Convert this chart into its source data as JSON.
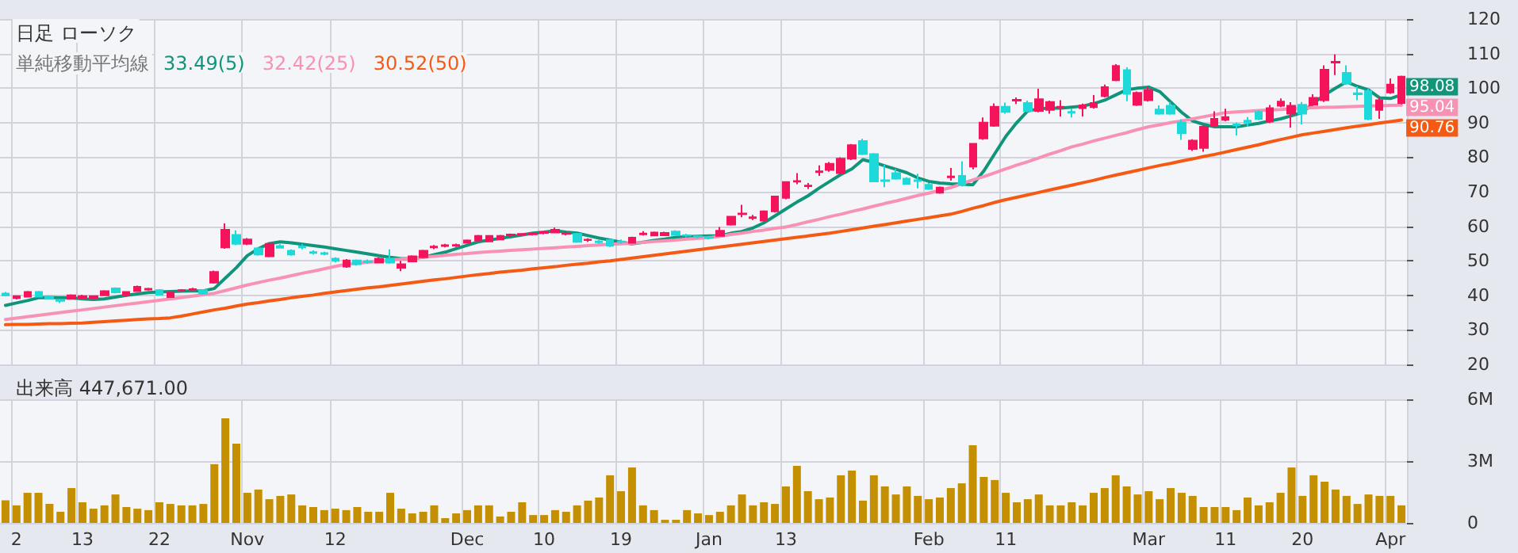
{
  "chart_data": [
    {
      "type": "candlestick",
      "title": "日足 ローソク",
      "annotations": [
        "単純移動平均線"
      ],
      "legend": "top left",
      "grid": true,
      "tick_labels": "y",
      "ylim": [
        20,
        120
      ],
      "yticks": [
        20,
        30,
        40,
        50,
        60,
        70,
        80,
        90,
        100,
        110,
        120
      ],
      "categories": [
        null,
        null,
        null,
        null,
        null,
        null,
        null,
        null,
        null,
        null,
        null,
        null,
        null,
        null,
        null,
        null,
        null,
        null,
        null,
        null,
        null,
        null,
        null,
        null,
        null,
        null,
        null,
        null,
        null,
        null,
        null,
        null,
        null,
        null,
        null,
        null,
        null,
        null,
        null,
        null,
        null,
        null,
        null,
        null,
        null,
        null,
        null,
        null,
        null,
        null,
        null,
        null,
        null,
        null,
        null,
        null,
        null,
        null,
        null,
        null,
        null,
        null,
        null,
        null,
        null,
        null,
        null,
        null,
        null,
        null,
        null,
        null,
        null,
        null,
        null,
        null,
        null,
        null,
        null,
        null,
        null,
        null,
        null,
        null,
        null,
        null,
        null,
        null,
        null,
        null,
        null,
        null,
        null,
        null,
        null,
        null,
        null,
        null,
        null,
        null,
        null,
        null,
        null,
        null,
        null,
        null,
        null,
        null,
        null,
        null,
        null,
        null,
        null,
        null,
        null,
        null,
        null,
        null,
        null,
        null,
        null,
        null,
        null,
        null,
        null,
        null,
        null,
        null
      ],
      "series": [
        {
          "type": "candlestick",
          "colors": [
            "#1dd9d9",
            "#f5135c",
            "#f5135c",
            "#1dd9d9",
            "#1dd9d9",
            "#1dd9d9",
            "#f5135c",
            "#f5135c",
            "#f5135c",
            "#f5135c",
            "#1dd9d9",
            "#f5135c",
            "#f5135c",
            "#f5135c",
            "#1dd9d9",
            "#f5135c",
            "#f5135c",
            "#f5135c",
            "#1dd9d9",
            "#f5135c",
            "#f5135c",
            "#1dd9d9",
            "#f5135c",
            "#1dd9d9",
            "#f5135c",
            "#1dd9d9",
            "#1dd9d9",
            "#1dd9d9",
            "#1dd9d9",
            "#1dd9d9",
            "#1dd9d9",
            "#f5135c",
            "#1dd9d9",
            "#1dd9d9",
            "#f5135c",
            "#1dd9d9",
            "#f5135c",
            "#f5135c",
            "#f5135c",
            "#f5135c",
            "#f5135c",
            "#f5135c",
            "#f5135c",
            "#f5135c",
            "#f5135c",
            "#f5135c",
            "#f5135c",
            "#f5135c",
            "#f5135c",
            "#f5135c",
            "#f5135c",
            "#f5135c",
            "#1dd9d9",
            "#f5135c",
            "#1dd9d9",
            "#1dd9d9",
            "#1dd9d9",
            "#f5135c",
            "#f5135c",
            "#f5135c",
            "#f5135c",
            "#1dd9d9",
            "#1dd9d9",
            "#1dd9d9",
            "#1dd9d9",
            "#f5135c",
            "#f5135c",
            "#f5135c",
            "#f5135c",
            "#f5135c",
            "#f5135c",
            "#f5135c",
            "#f5135c",
            "#f5135c",
            "#f5135c",
            "#f5135c",
            "#f5135c",
            "#f5135c",
            "#1dd9d9",
            "#1dd9d9",
            "#1dd9d9",
            "#1dd9d9",
            "#1dd9d9",
            "#1dd9d9",
            "#1dd9d9",
            "#f5135c",
            "#f5135c",
            "#1dd9d9",
            "#f5135c",
            "#f5135c",
            "#f5135c",
            "#1dd9d9",
            "#f5135c",
            "#1dd9d9",
            "#f5135c",
            "#f5135c",
            "#f5135c",
            "#1dd9d9",
            "#f5135c",
            "#f5135c",
            "#f5135c",
            "#f5135c",
            "#1dd9d9",
            "#f5135c",
            "#f5135c",
            "#1dd9d9",
            "#1dd9d9",
            "#1dd9d9",
            "#f5135c",
            "#f5135c",
            "#f5135c",
            "#f5135c",
            "#1dd9d9",
            "#1dd9d9",
            "#1dd9d9",
            "#f5135c",
            "#f5135c",
            "#f5135c",
            "#1dd9d9",
            "#f5135c",
            "#f5135c",
            "#f5135c",
            "#1dd9d9",
            "#1dd9d9",
            "#1dd9d9",
            "#f5135c",
            "#f5135c",
            "#f5135c"
          ],
          "ohlc": [
            [
              40.5,
              41,
              39.8,
              40
            ],
            [
              39.2,
              40,
              38.8,
              39.8
            ],
            [
              39.6,
              41.3,
              39.4,
              41
            ],
            [
              41,
              41.3,
              39.4,
              39.6
            ],
            [
              39.6,
              40,
              38.8,
              39
            ],
            [
              38.6,
              39,
              37.8,
              38.4
            ],
            [
              39,
              40.3,
              38.8,
              40
            ],
            [
              39.2,
              40.2,
              39,
              39.8
            ],
            [
              39.2,
              40,
              38.8,
              39.8
            ],
            [
              40,
              41.5,
              39.8,
              41.2
            ],
            [
              42,
              42.3,
              40.6,
              40.9
            ],
            [
              40,
              41.2,
              39.6,
              41
            ],
            [
              41.2,
              42.8,
              41,
              42.5
            ],
            [
              41.7,
              42.2,
              41.4,
              41.9
            ],
            [
              41.5,
              41.8,
              40,
              40.2
            ],
            [
              39.5,
              41,
              39.3,
              40.8
            ],
            [
              41.4,
              41.8,
              41,
              41.5
            ],
            [
              41.7,
              42.2,
              41.3,
              41.8
            ],
            [
              41.5,
              41.8,
              40.2,
              40.5
            ],
            [
              43.7,
              47.2,
              43.4,
              46.8
            ],
            [
              53.9,
              60.8,
              53.5,
              59
            ],
            [
              57.5,
              58.8,
              54.5,
              54.9
            ],
            [
              54.9,
              56.6,
              54.6,
              56.2
            ],
            [
              53.6,
              54,
              51.5,
              51.8
            ],
            [
              51.3,
              55.2,
              51,
              54.9
            ],
            [
              54.3,
              54.8,
              53.6,
              53.8
            ],
            [
              52.9,
              53.3,
              51.5,
              51.8
            ],
            [
              54.2,
              54.8,
              53.3,
              53.9
            ],
            [
              52.5,
              53,
              51.8,
              52.3
            ],
            [
              52.2,
              52.6,
              51.6,
              52
            ],
            [
              50.6,
              51,
              49.6,
              50
            ],
            [
              48.3,
              50.5,
              48,
              50.1
            ],
            [
              50.1,
              50.4,
              48.6,
              49
            ],
            [
              49.9,
              50.4,
              49.2,
              49.7
            ],
            [
              49.5,
              51,
              49.3,
              50.6
            ],
            [
              50.6,
              53.3,
              49.2,
              49.5
            ],
            [
              48,
              50,
              47,
              49
            ],
            [
              49.8,
              51.6,
              49.6,
              51.3
            ],
            [
              51,
              53.2,
              50.8,
              52.9
            ],
            [
              53.9,
              54.6,
              53.4,
              54.1
            ],
            [
              54.3,
              54.9,
              53.9,
              54.5
            ],
            [
              54.4,
              55,
              54,
              54.6
            ],
            [
              55.2,
              56.2,
              55,
              55.9
            ],
            [
              55.9,
              57.5,
              55.6,
              57.2
            ],
            [
              55.6,
              57.4,
              55.4,
              57.2
            ],
            [
              56.2,
              57.5,
              56,
              57.2
            ],
            [
              57.4,
              57.9,
              57,
              57.6
            ],
            [
              57.6,
              58,
              57.2,
              57.8
            ],
            [
              57.7,
              58.2,
              57.3,
              57.9
            ],
            [
              58.1,
              58.6,
              57.7,
              58.3
            ],
            [
              58.2,
              59.6,
              58,
              59
            ],
            [
              57.8,
              58.3,
              57.4,
              57.9
            ],
            [
              57.8,
              58.1,
              55.2,
              55.5
            ],
            [
              56,
              56.5,
              55.5,
              56.1
            ],
            [
              55.6,
              56,
              54.9,
              55.4
            ],
            [
              56,
              56.3,
              54,
              54.4
            ],
            [
              55.6,
              56.2,
              54.9,
              55.5
            ],
            [
              55.2,
              57,
              55,
              56.7
            ],
            [
              57.7,
              58.6,
              57.3,
              57.9
            ],
            [
              57.3,
              58.5,
              57.1,
              58.2
            ],
            [
              57.4,
              58.4,
              57.2,
              58.1
            ],
            [
              58.5,
              58.8,
              57.3,
              57.5
            ],
            [
              57.4,
              57.8,
              56.8,
              57.3
            ],
            [
              57.1,
              57.4,
              56.5,
              56.9
            ],
            [
              56.8,
              57.2,
              56.2,
              56.7
            ],
            [
              57.2,
              59.8,
              57,
              58.7
            ],
            [
              60.5,
              63,
              60.2,
              62.8
            ],
            [
              63.5,
              66.2,
              62.6,
              63.7
            ],
            [
              62.4,
              63.3,
              61.8,
              62.6
            ],
            [
              61.6,
              64.6,
              61.3,
              64.3
            ],
            [
              64.3,
              68.8,
              64,
              68.6
            ],
            [
              68.2,
              73,
              67.8,
              72.8
            ],
            [
              72.9,
              75.4,
              72.2,
              73.1
            ],
            [
              71.6,
              72.5,
              70.8,
              71.8
            ],
            [
              75.7,
              77.6,
              74.6,
              75.9
            ],
            [
              76.3,
              78.6,
              75.8,
              78.1
            ],
            [
              75.4,
              80,
              75,
              79.6
            ],
            [
              79.6,
              83.8,
              79.2,
              83.5
            ],
            [
              84.7,
              85.3,
              80.6,
              80.9
            ],
            [
              80.9,
              81.2,
              72.8,
              73
            ],
            [
              73.3,
              77.8,
              71.3,
              73.1
            ],
            [
              75.4,
              76.6,
              73.5,
              73.8
            ],
            [
              73.8,
              74.2,
              72,
              72.3
            ],
            [
              73.3,
              75.2,
              71,
              73.1
            ],
            [
              72,
              72.5,
              70.5,
              70.8
            ],
            [
              69.7,
              71.5,
              69.4,
              71.2
            ],
            [
              74.2,
              76.9,
              73.2,
              74.4
            ],
            [
              74.6,
              78.8,
              71.5,
              72
            ],
            [
              77.3,
              84.1,
              76.5,
              83.9
            ],
            [
              85.4,
              91.5,
              85,
              90
            ],
            [
              89.1,
              95.6,
              88.8,
              94.6
            ],
            [
              94.6,
              95.8,
              92.6,
              93.1
            ],
            [
              96.4,
              97.3,
              95.4,
              96.6
            ],
            [
              95.7,
              96.4,
              93,
              93.4
            ],
            [
              93.4,
              99.8,
              93,
              96.8
            ],
            [
              93.7,
              96.4,
              92.6,
              96
            ],
            [
              94.4,
              96.5,
              91.8,
              94.6
            ],
            [
              93.1,
              94,
              91.5,
              92.9
            ],
            [
              94.2,
              95.5,
              91.8,
              95
            ],
            [
              94.5,
              98,
              94.1,
              95.7
            ],
            [
              97.7,
              101,
              97.3,
              100.3
            ],
            [
              102.3,
              106.9,
              102,
              106.4
            ],
            [
              105.2,
              106,
              96.2,
              98.3
            ],
            [
              95.2,
              99,
              94.8,
              98.6
            ],
            [
              96.5,
              100.3,
              96.1,
              99.5
            ],
            [
              93.8,
              95,
              92.3,
              92.6
            ],
            [
              94.9,
              96,
              92.3,
              92.6
            ],
            [
              90,
              91,
              85,
              87
            ],
            [
              82.4,
              85.2,
              81.8,
              84.8
            ],
            [
              82.7,
              89.2,
              81.6,
              88.8
            ],
            [
              89.1,
              93.3,
              88.7,
              91.1
            ],
            [
              90.8,
              94,
              90.4,
              91.6
            ],
            [
              89.5,
              90,
              86.3,
              89.2
            ],
            [
              90.6,
              91.6,
              88.8,
              90
            ],
            [
              93.1,
              93.6,
              90.7,
              91.1
            ],
            [
              90.3,
              95.1,
              89.9,
              94.2
            ],
            [
              94.9,
              97,
              94.5,
              96.1
            ],
            [
              92.6,
              95.9,
              88.6,
              94.9
            ],
            [
              95.2,
              96,
              89.5,
              92.6
            ],
            [
              95.2,
              98.2,
              94.8,
              97.2
            ],
            [
              96.5,
              106.6,
              96,
              105.3
            ],
            [
              107.4,
              109.8,
              103.8,
              107.6
            ],
            [
              104.4,
              106.6,
              100.9,
              101.3
            ],
            [
              98.5,
              100.5,
              96.5,
              98.2
            ],
            [
              99.2,
              99.8,
              90.7,
              91.1
            ],
            [
              93.7,
              97.4,
              91.1,
              96.5
            ],
            [
              98.7,
              102.8,
              98.3,
              101
            ],
            [
              95.7,
              103.6,
              95.3,
              103.3
            ]
          ]
        },
        {
          "type": "line",
          "name": "33.49(5)",
          "color": "#11957a",
          "values": [
            37.1,
            37.8,
            38.5,
            39.3,
            39.4,
            39.3,
            39.3,
            39,
            38.8,
            39,
            39.5,
            40,
            40.4,
            40.8,
            41,
            41.1,
            41.2,
            41.3,
            41.3,
            42,
            45,
            48,
            51.5,
            53.5,
            55,
            55.5,
            55.2,
            54.8,
            54.4,
            54,
            53.5,
            53,
            52.5,
            52,
            51.5,
            51,
            50.6,
            50.7,
            51,
            51.8,
            52.5,
            53.5,
            54.5,
            55.5,
            56,
            56.5,
            57,
            57.5,
            58,
            58.3,
            58.7,
            58.3,
            58,
            57.3,
            56.6,
            56,
            55.4,
            54.9,
            55.4,
            55.9,
            56.3,
            56.8,
            57,
            57.1,
            57.2,
            57.2,
            58,
            58.5,
            59.5,
            61,
            63,
            65,
            67,
            68.8,
            71,
            73,
            75,
            76.6,
            79.3,
            78.5,
            77.5,
            76.5,
            75.5,
            74,
            73,
            72.5,
            72.3,
            72.2,
            72,
            76,
            81,
            86,
            90,
            93.4,
            94,
            94.2,
            94.2,
            94.5,
            94.8,
            95.5,
            96.5,
            98,
            99.5,
            100,
            100.3,
            99,
            96,
            93,
            90.5,
            89.5,
            88.8,
            88.8,
            88.8,
            89.3,
            89.8,
            90.5,
            91.1,
            92,
            93,
            95.7,
            98,
            100,
            101.8,
            100.5,
            99.5,
            97.2,
            97,
            98.08
          ],
          "value_labels": [
            null,
            null,
            null,
            null,
            null,
            null,
            null,
            null,
            null,
            null,
            null,
            null,
            null,
            null,
            null,
            null,
            null,
            null,
            null,
            null,
            null,
            null,
            null,
            null,
            null,
            null,
            null,
            null,
            null,
            null,
            null,
            null,
            null,
            null,
            null,
            null,
            null,
            null,
            null,
            null,
            null,
            null,
            null,
            null,
            null,
            null,
            null,
            null,
            null,
            null,
            null,
            null,
            null,
            null,
            null,
            null,
            null,
            null,
            null,
            null,
            null,
            null,
            null,
            null,
            null,
            null,
            null,
            null,
            null,
            null,
            null,
            null,
            null,
            null,
            null,
            null,
            null,
            null,
            null,
            null,
            null,
            null,
            null,
            null,
            null,
            null,
            null,
            null,
            null,
            null,
            null,
            null,
            null,
            null,
            null,
            null,
            null,
            null,
            null,
            null,
            null,
            null,
            null,
            null,
            null,
            null,
            null,
            null,
            null,
            null,
            null,
            null,
            null,
            null,
            null,
            null,
            null,
            null,
            null,
            null,
            null,
            null,
            null,
            null,
            null,
            null,
            null,
            "98.08"
          ]
        },
        {
          "type": "line",
          "name": "32.42(25)",
          "color": "#f792b4",
          "values": [
            33,
            33.4,
            33.8,
            34.2,
            34.6,
            35,
            35.4,
            35.8,
            36.2,
            36.6,
            37,
            37.4,
            37.8,
            38.2,
            38.6,
            39,
            39.4,
            39.8,
            40.2,
            40.6,
            41.4,
            42.2,
            43,
            43.7,
            44.4,
            45,
            45.7,
            46.4,
            47,
            47.7,
            48.4,
            49,
            49.3,
            49.6,
            49.9,
            50.2,
            50.5,
            50.8,
            51,
            51.3,
            51.6,
            51.9,
            52.1,
            52.4,
            52.6,
            52.8,
            53,
            53.2,
            53.4,
            53.6,
            53.8,
            54,
            54.2,
            54.4,
            54.6,
            54.8,
            54.9,
            55.1,
            55.3,
            55.6,
            55.8,
            56,
            56.3,
            56.5,
            56.7,
            57.1,
            57.6,
            58,
            58.5,
            58.9,
            59.4,
            59.8,
            60.5,
            61.3,
            62,
            62.8,
            63.5,
            64.3,
            65,
            65.8,
            66.6,
            67.3,
            68.1,
            68.9,
            69.6,
            70.4,
            71.2,
            72.3,
            73.4,
            74.4,
            75.5,
            76.6,
            77.7,
            78.7,
            79.8,
            80.9,
            81.9,
            83,
            83.8,
            84.7,
            85.5,
            86.3,
            87.1,
            88,
            88.8,
            89.4,
            90,
            90.5,
            91.1,
            91.7,
            92.3,
            92.9,
            93.1,
            93.3,
            93.5,
            93.7,
            93.8,
            94,
            94.2,
            94.3,
            94.4,
            94.5,
            94.6,
            94.7,
            94.8,
            94.9,
            95,
            95.04
          ],
          "value_labels": [
            null,
            null,
            null,
            null,
            null,
            null,
            null,
            null,
            null,
            null,
            null,
            null,
            null,
            null,
            null,
            null,
            null,
            null,
            null,
            null,
            null,
            null,
            null,
            null,
            null,
            null,
            null,
            null,
            null,
            null,
            null,
            null,
            null,
            null,
            null,
            null,
            null,
            null,
            null,
            null,
            null,
            null,
            null,
            null,
            null,
            null,
            null,
            null,
            null,
            null,
            null,
            null,
            null,
            null,
            null,
            null,
            null,
            null,
            null,
            null,
            null,
            null,
            null,
            null,
            null,
            null,
            null,
            null,
            null,
            null,
            null,
            null,
            null,
            null,
            null,
            null,
            null,
            null,
            null,
            null,
            null,
            null,
            null,
            null,
            null,
            null,
            null,
            null,
            null,
            null,
            null,
            null,
            null,
            null,
            null,
            null,
            null,
            null,
            null,
            null,
            null,
            null,
            null,
            null,
            null,
            null,
            null,
            null,
            null,
            null,
            null,
            null,
            null,
            null,
            null,
            null,
            null,
            null,
            null,
            null,
            null,
            null,
            null,
            null,
            null,
            null,
            null,
            "95.04"
          ]
        },
        {
          "type": "line",
          "name": "30.52(50)",
          "color": "#f55a14",
          "values": [
            31.5,
            31.6,
            31.6,
            31.7,
            31.8,
            31.8,
            31.9,
            32,
            32.2,
            32.4,
            32.6,
            32.8,
            33,
            33.2,
            33.3,
            33.5,
            34,
            34.6,
            35.2,
            35.8,
            36.3,
            36.9,
            37.5,
            37.9,
            38.4,
            38.8,
            39.3,
            39.7,
            40.1,
            40.6,
            41,
            41.4,
            41.8,
            42.2,
            42.5,
            42.9,
            43.3,
            43.7,
            44.1,
            44.5,
            44.8,
            45.2,
            45.6,
            46,
            46.3,
            46.7,
            47,
            47.3,
            47.7,
            48,
            48.3,
            48.7,
            49,
            49.3,
            49.7,
            50,
            50.4,
            50.8,
            51.2,
            51.6,
            52,
            52.4,
            52.8,
            53.2,
            53.6,
            54,
            54.4,
            54.8,
            55.2,
            55.6,
            56,
            56.4,
            56.8,
            57.2,
            57.6,
            58,
            58.5,
            59,
            59.5,
            60,
            60.5,
            61,
            61.5,
            62,
            62.5,
            63,
            63.5,
            64.3,
            65.2,
            66,
            66.9,
            67.7,
            68.4,
            69.1,
            69.8,
            70.5,
            71.2,
            71.9,
            72.6,
            73.3,
            74.1,
            74.8,
            75.5,
            76.2,
            76.9,
            77.6,
            78.2,
            78.9,
            79.5,
            80.2,
            80.8,
            81.5,
            82.2,
            82.9,
            83.6,
            84.4,
            85.1,
            85.8,
            86.5,
            87,
            87.5,
            88,
            88.5,
            89,
            89.4,
            89.9,
            90.3,
            90.76
          ],
          "value_labels": [
            null,
            null,
            null,
            null,
            null,
            null,
            null,
            null,
            null,
            null,
            null,
            null,
            null,
            null,
            null,
            null,
            null,
            null,
            null,
            null,
            null,
            null,
            null,
            null,
            null,
            null,
            null,
            null,
            null,
            null,
            null,
            null,
            null,
            null,
            null,
            null,
            null,
            null,
            null,
            null,
            null,
            null,
            null,
            null,
            null,
            null,
            null,
            null,
            null,
            null,
            null,
            null,
            null,
            null,
            null,
            null,
            null,
            null,
            null,
            null,
            null,
            null,
            null,
            null,
            null,
            null,
            null,
            null,
            null,
            null,
            null,
            null,
            null,
            null,
            null,
            null,
            null,
            null,
            null,
            null,
            null,
            null,
            null,
            null,
            null,
            null,
            null,
            null,
            null,
            null,
            null,
            null,
            null,
            null,
            null,
            null,
            null,
            null,
            null,
            null,
            null,
            null,
            null,
            null,
            null,
            null,
            null,
            null,
            null,
            null,
            null,
            null,
            null,
            null,
            null,
            null,
            null,
            null,
            null,
            null,
            null,
            null,
            null,
            null,
            null,
            null,
            null,
            "90.76"
          ]
        }
      ]
    },
    {
      "type": "bar",
      "title": "出来高 447,671.00",
      "grid": true,
      "color": "#c48f00",
      "ylim": [
        0,
        6
      ],
      "yticks": [
        {
          "value": 0,
          "label": "0"
        },
        {
          "value": 3,
          "label": "3M"
        },
        {
          "value": 6,
          "label": "6M"
        }
      ],
      "categories": [
        null,
        "2",
        null,
        null,
        null,
        null,
        null,
        "13",
        null,
        null,
        null,
        null,
        null,
        null,
        "22",
        null,
        null,
        null,
        null,
        null,
        null,
        null,
        "Nov",
        null,
        null,
        null,
        null,
        null,
        null,
        null,
        "12",
        null,
        null,
        null,
        null,
        null,
        null,
        null,
        null,
        null,
        null,
        null,
        "Dec",
        null,
        null,
        null,
        null,
        null,
        null,
        "10",
        null,
        null,
        null,
        null,
        null,
        null,
        "19",
        null,
        null,
        null,
        null,
        null,
        null,
        null,
        "Jan",
        null,
        null,
        null,
        null,
        null,
        null,
        "13",
        null,
        null,
        null,
        null,
        null,
        null,
        null,
        null,
        null,
        null,
        null,
        null,
        "Feb",
        null,
        null,
        null,
        null,
        null,
        null,
        "11",
        null,
        null,
        null,
        null,
        null,
        null,
        null,
        null,
        null,
        null,
        null,
        null,
        "Mar",
        null,
        null,
        null,
        null,
        null,
        null,
        "11",
        null,
        null,
        null,
        null,
        null,
        null,
        "20",
        null,
        null,
        null,
        null,
        null,
        null,
        null,
        "Apr",
        null
      ],
      "values": [
        1.1,
        0.85,
        1.46,
        1.46,
        0.92,
        0.54,
        1.69,
        1.0,
        0.69,
        0.85,
        1.38,
        0.77,
        0.69,
        0.62,
        1.0,
        0.92,
        0.85,
        0.85,
        0.92,
        2.85,
        5.08,
        3.85,
        1.46,
        1.62,
        1.15,
        1.31,
        1.38,
        0.85,
        0.77,
        0.62,
        0.69,
        0.62,
        0.77,
        0.54,
        0.54,
        1.46,
        0.69,
        0.46,
        0.54,
        0.85,
        0.23,
        0.46,
        0.62,
        0.85,
        0.85,
        0.31,
        0.54,
        1.0,
        0.38,
        0.38,
        0.62,
        0.54,
        0.85,
        1.08,
        1.23,
        2.31,
        1.54,
        2.69,
        0.85,
        0.62,
        0.15,
        0.15,
        0.62,
        0.46,
        0.38,
        0.54,
        0.85,
        1.38,
        0.85,
        1.0,
        0.92,
        1.77,
        2.77,
        1.54,
        1.15,
        1.23,
        2.31,
        2.54,
        1.08,
        2.31,
        1.77,
        1.38,
        1.77,
        1.31,
        1.15,
        1.23,
        1.69,
        1.92,
        3.77,
        2.23,
        2.08,
        1.46,
        1.0,
        1.15,
        1.38,
        0.85,
        0.85,
        1.0,
        0.85,
        1.46,
        1.69,
        2.31,
        1.77,
        1.38,
        1.54,
        1.15,
        1.69,
        1.46,
        1.31,
        0.77,
        0.77,
        0.77,
        0.62,
        1.23,
        0.85,
        1.0,
        1.46,
        2.69,
        1.31,
        2.31,
        2.0,
        1.62,
        1.31,
        0.92,
        1.38,
        1.31,
        1.31,
        0.85
      ]
    }
  ]
}
